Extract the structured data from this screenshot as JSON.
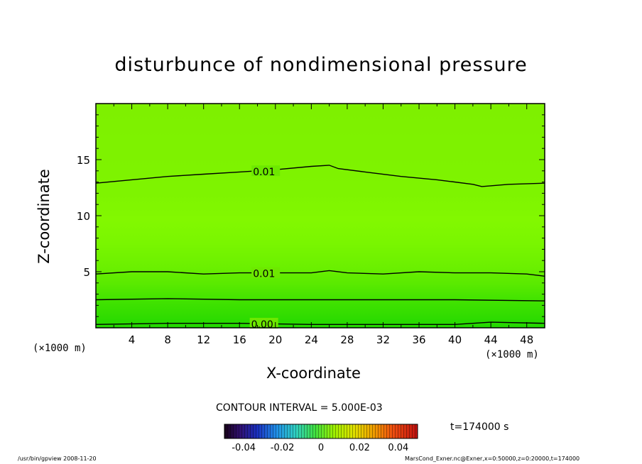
{
  "chart_data": {
    "type": "heatmap",
    "title": "disturbunce of nondimensional pressure",
    "xlabel": "X-coordinate",
    "ylabel": "Z-coordinate",
    "x_unit_label": "(×1000 m)",
    "xlim": [
      0,
      50
    ],
    "ylim": [
      0,
      20
    ],
    "xticks": [
      4,
      8,
      12,
      16,
      20,
      24,
      28,
      32,
      36,
      40,
      44,
      48
    ],
    "yticks": [
      5,
      10,
      15
    ],
    "contour_interval": "CONTOUR INTERVAL = 5.000E-03",
    "time_label": "t=174000 s",
    "contours": [
      {
        "label": "0.01",
        "label_x": 17.5,
        "points": [
          [
            0,
            12.9
          ],
          [
            4,
            13.2
          ],
          [
            8,
            13.5
          ],
          [
            12,
            13.7
          ],
          [
            16,
            13.9
          ],
          [
            20,
            14.1
          ],
          [
            24,
            14.4
          ],
          [
            26,
            14.5
          ],
          [
            27,
            14.2
          ],
          [
            30,
            13.9
          ],
          [
            34,
            13.5
          ],
          [
            38,
            13.2
          ],
          [
            42,
            12.8
          ],
          [
            43,
            12.6
          ],
          [
            46,
            12.8
          ],
          [
            50,
            12.9
          ]
        ]
      },
      {
        "label": "0.01",
        "label_x": 17.5,
        "points": [
          [
            0,
            4.8
          ],
          [
            4,
            5.0
          ],
          [
            8,
            5.0
          ],
          [
            12,
            4.8
          ],
          [
            16,
            4.9
          ],
          [
            20,
            4.9
          ],
          [
            24,
            4.9
          ],
          [
            26,
            5.1
          ],
          [
            28,
            4.9
          ],
          [
            32,
            4.8
          ],
          [
            36,
            5.0
          ],
          [
            40,
            4.9
          ],
          [
            44,
            4.9
          ],
          [
            48,
            4.8
          ],
          [
            50,
            4.6
          ]
        ]
      },
      {
        "label": "",
        "points": [
          [
            0,
            2.5
          ],
          [
            8,
            2.6
          ],
          [
            16,
            2.5
          ],
          [
            24,
            2.5
          ],
          [
            32,
            2.5
          ],
          [
            40,
            2.5
          ],
          [
            50,
            2.4
          ]
        ]
      },
      {
        "label": "0.00",
        "label_x": 17.3,
        "points": [
          [
            0,
            0.3
          ],
          [
            8,
            0.4
          ],
          [
            16,
            0.4
          ],
          [
            24,
            0.3
          ],
          [
            32,
            0.3
          ],
          [
            40,
            0.3
          ],
          [
            44,
            0.5
          ],
          [
            50,
            0.4
          ]
        ]
      }
    ],
    "colorbar": {
      "range": [
        -0.05,
        0.05
      ],
      "ticks": [
        "-0.04",
        "-0.02",
        "0",
        "0.02",
        "0.04"
      ],
      "tick_values": [
        -0.04,
        -0.02,
        0,
        0.02,
        0.04
      ]
    }
  },
  "footer": {
    "left": "/usr/bin/gpview   2008-11-20",
    "right": "MarsCond_Exner.nc@Exner,x=0:50000,z=0:20000,t=174000"
  }
}
